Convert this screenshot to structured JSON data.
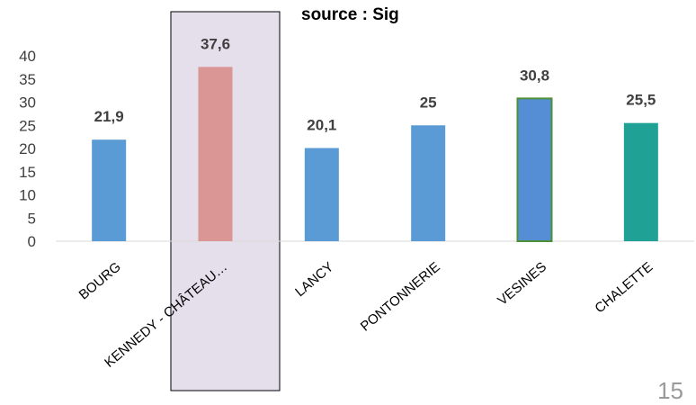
{
  "source_title": "source : Sig",
  "page_number": "15",
  "colors": {
    "default_bar": "#5b9bd5",
    "highlight_bar": "#d99694",
    "highlight_box_fill": "#e5dfec",
    "highlight_box_border": "#000000",
    "vesines_bar": "#558ed5",
    "vesines_border": "#4e8f3a",
    "chalette_bar": "#20a195",
    "axis": "#d9d9d9",
    "text": "#404040"
  },
  "chart_data": {
    "type": "bar",
    "title": "",
    "xlabel": "",
    "ylabel": "",
    "categories": [
      "BOURG",
      "KENNEDY - CHÂTEAU…",
      "LANCY",
      "PONTONNERIE",
      "VESINES",
      "CHALETTE"
    ],
    "values": [
      21.9,
      37.6,
      20.1,
      25,
      30.8,
      25.5
    ],
    "data_labels": [
      "21,9",
      "37,6",
      "20,1",
      "25",
      "30,8",
      "25,5"
    ],
    "ylim": [
      0,
      40
    ],
    "yticks": [
      "0",
      "5",
      "10",
      "15",
      "20",
      "25",
      "30",
      "35",
      "40"
    ],
    "highlighted_category": "KENNEDY - CHÂTEAU…",
    "bar_colors": [
      "#5b9bd5",
      "#d99694",
      "#5b9bd5",
      "#5b9bd5",
      "#558ed5",
      "#20a195"
    ],
    "grid": false,
    "legend": "none"
  }
}
